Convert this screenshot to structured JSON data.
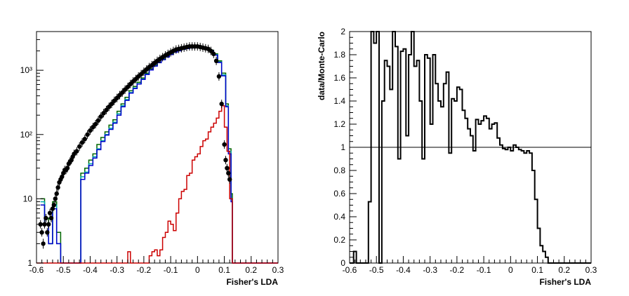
{
  "chart_data": [
    {
      "type": "line",
      "xlabel": "Fisher's LDA",
      "ylabel": "",
      "xlim": [
        -0.6,
        0.3
      ],
      "ylim": [
        1,
        4000
      ],
      "yscale": "log",
      "x_ticks": [
        "-0.6",
        "-0.5",
        "-0.4",
        "-0.3",
        "-0.2",
        "-0.1",
        "0",
        "0.1",
        "0.2",
        "0.3"
      ],
      "y_ticks": [
        "1",
        "10",
        "10²",
        "10³"
      ],
      "series": [
        {
          "color": "#006600",
          "style": "step",
          "x": [
            -0.585,
            -0.57,
            -0.555,
            -0.54,
            -0.525,
            -0.51,
            -0.495,
            -0.48,
            -0.465,
            -0.45,
            -0.435,
            -0.42,
            -0.405,
            -0.39,
            -0.375,
            -0.36,
            -0.345,
            -0.33,
            -0.315,
            -0.3,
            -0.285,
            -0.27,
            -0.255,
            -0.24,
            -0.225,
            -0.21,
            -0.195,
            -0.18,
            -0.165,
            -0.15,
            -0.135,
            -0.12,
            -0.105,
            -0.09,
            -0.075,
            -0.06,
            -0.045,
            -0.03,
            -0.015,
            0,
            0.015,
            0.03,
            0.045,
            0.06,
            0.075,
            0.09,
            0.105,
            0.115,
            0.125,
            0.13,
            0.14,
            0.2,
            0.3
          ],
          "y": [
            10,
            5,
            2,
            9,
            3,
            1,
            1,
            1,
            1,
            1,
            25,
            30,
            40,
            50,
            70,
            90,
            110,
            140,
            170,
            230,
            300,
            380,
            480,
            560,
            650,
            760,
            900,
            1050,
            1200,
            1350,
            1500,
            1650,
            1800,
            1950,
            2050,
            2150,
            2200,
            2250,
            2300,
            2300,
            2250,
            2200,
            2050,
            1800,
            1400,
            900,
            300,
            60,
            12,
            1,
            1,
            1,
            1
          ]
        },
        {
          "color": "#00aaaa",
          "style": "step",
          "x": [
            -0.585,
            -0.57,
            -0.555,
            -0.54,
            -0.525,
            -0.51,
            -0.495,
            -0.48,
            -0.465,
            -0.45,
            -0.435,
            -0.42,
            -0.405,
            -0.39,
            -0.375,
            -0.36,
            -0.345,
            -0.33,
            -0.315,
            -0.3,
            -0.285,
            -0.27,
            -0.255,
            -0.24,
            -0.225,
            -0.21,
            -0.195,
            -0.18,
            -0.165,
            -0.15,
            -0.135,
            -0.12,
            -0.105,
            -0.09,
            -0.075,
            -0.06,
            -0.045,
            -0.03,
            -0.015,
            0,
            0.015,
            0.03,
            0.045,
            0.06,
            0.075,
            0.09,
            0.105,
            0.115,
            0.125,
            0.13,
            0.14,
            0.2,
            0.3
          ],
          "y": [
            9,
            4,
            2,
            8,
            2,
            1,
            1,
            1,
            1,
            1,
            22,
            26,
            35,
            45,
            60,
            80,
            100,
            125,
            155,
            210,
            280,
            350,
            450,
            530,
            620,
            730,
            870,
            1020,
            1170,
            1320,
            1470,
            1620,
            1770,
            1920,
            2020,
            2120,
            2180,
            2230,
            2280,
            2280,
            2230,
            2180,
            2020,
            1750,
            1350,
            850,
            280,
            55,
            10,
            1,
            1,
            1,
            1
          ]
        },
        {
          "color": "#0000cc",
          "style": "step",
          "x": [
            -0.585,
            -0.57,
            -0.555,
            -0.54,
            -0.525,
            -0.51,
            -0.495,
            -0.48,
            -0.465,
            -0.45,
            -0.435,
            -0.42,
            -0.405,
            -0.39,
            -0.375,
            -0.36,
            -0.345,
            -0.33,
            -0.315,
            -0.3,
            -0.285,
            -0.27,
            -0.255,
            -0.24,
            -0.225,
            -0.21,
            -0.195,
            -0.18,
            -0.165,
            -0.15,
            -0.135,
            -0.12,
            -0.105,
            -0.09,
            -0.075,
            -0.06,
            -0.045,
            -0.03,
            -0.015,
            0,
            0.015,
            0.03,
            0.045,
            0.06,
            0.075,
            0.09,
            0.105,
            0.115,
            0.125,
            0.13,
            0.14,
            0.2,
            0.3
          ],
          "y": [
            8,
            4,
            2,
            7,
            2,
            1,
            1,
            1,
            1,
            1,
            20,
            25,
            33,
            43,
            58,
            78,
            98,
            120,
            150,
            200,
            270,
            340,
            440,
            520,
            610,
            720,
            860,
            1010,
            1160,
            1310,
            1460,
            1610,
            1760,
            1910,
            2010,
            2110,
            2170,
            2220,
            2270,
            2270,
            2220,
            2170,
            2000,
            1720,
            1320,
            820,
            270,
            50,
            9,
            1,
            1,
            1,
            1
          ]
        },
        {
          "color": "#cc0000",
          "style": "step",
          "x": [
            -0.6,
            -0.27,
            -0.26,
            -0.25,
            -0.2,
            -0.19,
            -0.18,
            -0.17,
            -0.16,
            -0.15,
            -0.14,
            -0.13,
            -0.12,
            -0.11,
            -0.1,
            -0.09,
            -0.08,
            -0.07,
            -0.06,
            -0.05,
            -0.04,
            -0.03,
            -0.02,
            -0.01,
            0,
            0.01,
            0.02,
            0.03,
            0.04,
            0.05,
            0.06,
            0.07,
            0.08,
            0.09,
            0.1,
            0.11,
            0.12,
            0.13,
            0.3
          ],
          "y": [
            1,
            1,
            1.5,
            1,
            1,
            1,
            1.3,
            1.5,
            1.6,
            1.3,
            1.6,
            2.5,
            3,
            4.5,
            4,
            3.2,
            6,
            10,
            13,
            14,
            23,
            25,
            40,
            45,
            50,
            65,
            80,
            85,
            110,
            130,
            150,
            180,
            230,
            280,
            130,
            55,
            10,
            1,
            1
          ]
        },
        {
          "color": "#000000",
          "style": "points",
          "x": [
            -0.585,
            -0.58,
            -0.575,
            -0.57,
            -0.565,
            -0.56,
            -0.555,
            -0.55,
            -0.545,
            -0.54,
            -0.535,
            -0.53,
            -0.525,
            -0.52,
            -0.515,
            -0.51,
            -0.505,
            -0.5,
            -0.495,
            -0.49,
            -0.485,
            -0.48,
            -0.475,
            -0.47,
            -0.465,
            -0.46,
            -0.45,
            -0.44,
            -0.43,
            -0.42,
            -0.41,
            -0.4,
            -0.39,
            -0.38,
            -0.37,
            -0.36,
            -0.35,
            -0.34,
            -0.33,
            -0.32,
            -0.31,
            -0.3,
            -0.29,
            -0.28,
            -0.27,
            -0.26,
            -0.25,
            -0.24,
            -0.23,
            -0.22,
            -0.21,
            -0.2,
            -0.19,
            -0.18,
            -0.17,
            -0.16,
            -0.15,
            -0.14,
            -0.13,
            -0.12,
            -0.11,
            -0.1,
            -0.09,
            -0.08,
            -0.07,
            -0.06,
            -0.05,
            -0.04,
            -0.03,
            -0.02,
            -0.01,
            0,
            0.01,
            0.02,
            0.03,
            0.04,
            0.05,
            0.06,
            0.07,
            0.08,
            0.09,
            0.1,
            0.105,
            0.11,
            0.115,
            0.12
          ],
          "y": [
            4,
            3,
            2,
            4,
            5,
            3,
            4,
            6,
            5,
            7,
            8,
            10,
            12,
            15,
            18,
            20,
            22,
            25,
            28,
            28,
            30,
            35,
            38,
            40,
            45,
            50,
            55,
            65,
            75,
            85,
            100,
            115,
            130,
            145,
            165,
            190,
            215,
            240,
            270,
            300,
            335,
            370,
            410,
            450,
            500,
            550,
            610,
            670,
            730,
            800,
            870,
            950,
            1030,
            1120,
            1200,
            1300,
            1400,
            1500,
            1600,
            1700,
            1800,
            1900,
            2000,
            2100,
            2150,
            2200,
            2250,
            2300,
            2350,
            2350,
            2350,
            2350,
            2300,
            2250,
            2200,
            2150,
            2000,
            1800,
            1400,
            800,
            300,
            70,
            40,
            30,
            25,
            20
          ]
        }
      ]
    },
    {
      "type": "line",
      "xlabel": "Fisher's LDA",
      "ylabel": "data/Monte-Carlo",
      "xlim": [
        -0.6,
        0.3
      ],
      "ylim": [
        0,
        2
      ],
      "x_ticks": [
        "-0.6",
        "-0.5",
        "-0.4",
        "-0.3",
        "-0.2",
        "-0.1",
        "0",
        "0.1",
        "0.2",
        "0.3"
      ],
      "y_ticks": [
        "0",
        "0.2",
        "0.4",
        "0.6",
        "0.8",
        "1",
        "1.2",
        "1.4",
        "1.6",
        "1.8",
        "2"
      ],
      "reference_line": 1,
      "series": [
        {
          "color": "#000000",
          "style": "step",
          "x": [
            -0.6,
            -0.585,
            -0.575,
            -0.53,
            -0.52,
            -0.51,
            -0.5,
            -0.49,
            -0.48,
            -0.47,
            -0.46,
            -0.45,
            -0.44,
            -0.43,
            -0.42,
            -0.41,
            -0.4,
            -0.39,
            -0.38,
            -0.37,
            -0.36,
            -0.35,
            -0.34,
            -0.33,
            -0.32,
            -0.31,
            -0.3,
            -0.29,
            -0.28,
            -0.27,
            -0.26,
            -0.25,
            -0.24,
            -0.23,
            -0.22,
            -0.21,
            -0.2,
            -0.19,
            -0.18,
            -0.17,
            -0.16,
            -0.15,
            -0.14,
            -0.13,
            -0.12,
            -0.11,
            -0.1,
            -0.09,
            -0.08,
            -0.07,
            -0.06,
            -0.05,
            -0.04,
            -0.03,
            -0.02,
            -0.01,
            0,
            0.01,
            0.02,
            0.03,
            0.04,
            0.05,
            0.06,
            0.07,
            0.08,
            0.09,
            0.1,
            0.11,
            0.12,
            0.13,
            0.14,
            0.3
          ],
          "y": [
            0,
            0.1,
            0,
            0.53,
            2,
            1.9,
            2,
            0,
            1.4,
            1.75,
            1.7,
            1.5,
            2,
            1.87,
            0.9,
            1.83,
            1.85,
            1.1,
            1.8,
            2,
            1.7,
            1.75,
            1.4,
            0.9,
            1.8,
            1.77,
            1.2,
            1.8,
            1.55,
            1.4,
            1.35,
            1.55,
            1.65,
            0.95,
            1.42,
            1.4,
            1.52,
            1.5,
            1.32,
            1.25,
            1.16,
            1.1,
            0.97,
            1.24,
            1.2,
            1.23,
            1.27,
            1.25,
            1.16,
            1.2,
            1.21,
            1.08,
            1.02,
            0.99,
            0.98,
            1.0,
            0.97,
            1.02,
            1.0,
            0.98,
            0.97,
            0.95,
            0.97,
            0.95,
            0.8,
            0.55,
            0.3,
            0.15,
            0.1,
            0.05,
            0,
            0
          ]
        }
      ]
    }
  ]
}
